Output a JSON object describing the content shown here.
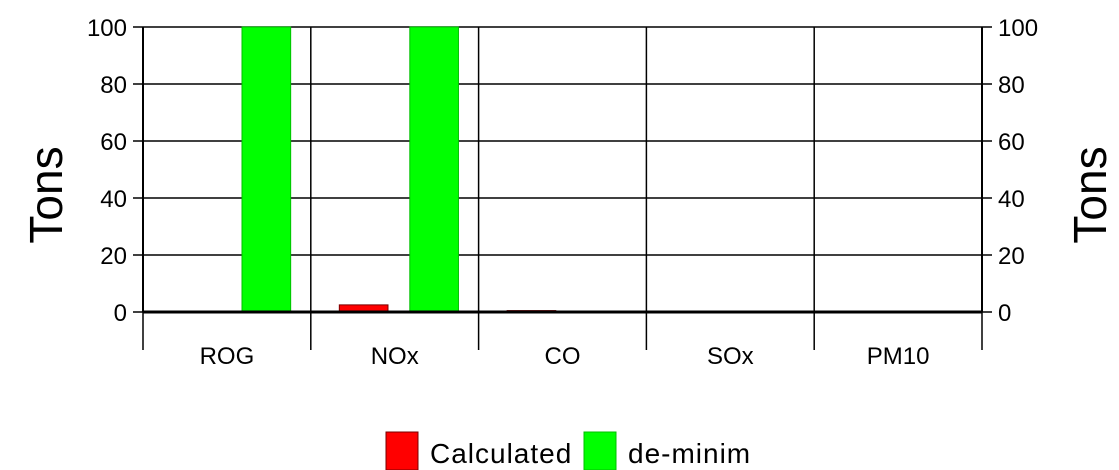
{
  "chart_data": {
    "type": "bar",
    "categories": [
      "ROG",
      "NOx",
      "CO",
      "SOx",
      "PM10"
    ],
    "series": [
      {
        "name": "Calculated",
        "values": [
          0,
          2.5,
          0.5,
          0,
          0
        ],
        "color": "#ff0000"
      },
      {
        "name": "de-minim",
        "values": [
          100,
          100,
          0,
          0,
          0
        ],
        "color": "#00ff00"
      }
    ],
    "ylabel": "Tons",
    "ylabel_right": "Tons",
    "ylim": [
      0,
      100
    ],
    "yticks": [
      "0",
      "20",
      "40",
      "60",
      "80",
      "100"
    ],
    "grid": true,
    "legend_position": "bottom-center"
  }
}
